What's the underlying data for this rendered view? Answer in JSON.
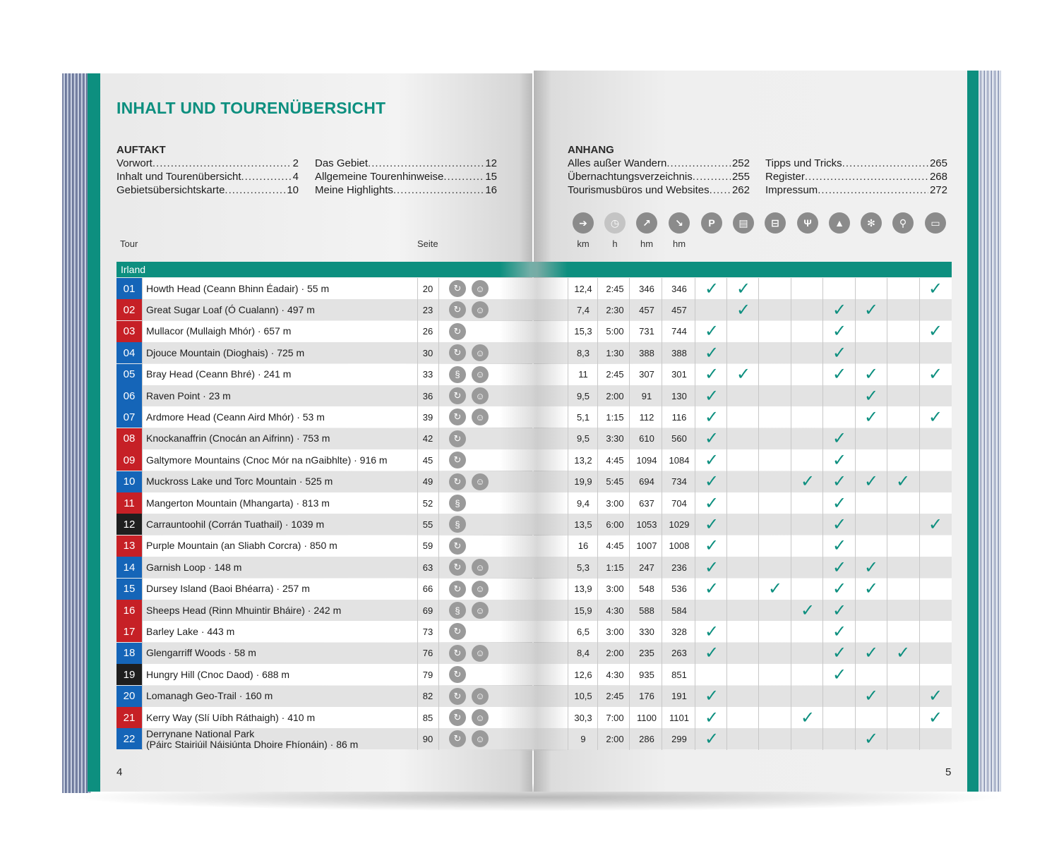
{
  "title": "INHALT UND TOURENÜBERSICHT",
  "auftakt": {
    "heading": "AUFTAKT",
    "col1": [
      {
        "label": "Vorwort",
        "page": "2"
      },
      {
        "label": "Inhalt und Tourenübersicht",
        "page": "4"
      },
      {
        "label": "Gebietsübersichtskarte",
        "page": "10"
      }
    ],
    "col2": [
      {
        "label": "Das Gebiet",
        "page": "12"
      },
      {
        "label": "Allgemeine Tourenhinweise",
        "page": "15"
      },
      {
        "label": "Meine Highlights",
        "page": "16"
      }
    ]
  },
  "anhang": {
    "heading": "ANHANG",
    "col1": [
      {
        "label": "Alles außer Wandern",
        "page": "252"
      },
      {
        "label": "Übernachtungsverzeichnis",
        "page": "255"
      },
      {
        "label": "Tourismusbüros und Websites",
        "page": "262"
      }
    ],
    "col2": [
      {
        "label": "Tipps und Tricks",
        "page": "265"
      },
      {
        "label": "Register",
        "page": "268"
      },
      {
        "label": "Impressum",
        "page": "272"
      }
    ]
  },
  "table": {
    "tour_header": "Tour",
    "seite_header": "Seite",
    "units": [
      "km",
      "h",
      "hm",
      "hm"
    ],
    "header_icons": [
      "distance-sign-icon",
      "clock-icon",
      "ascent-arrow-icon",
      "descent-arrow-icon",
      "parking-icon",
      "bus-icon",
      "cable-car-icon",
      "restaurant-icon",
      "mountain-icon",
      "winter-icon",
      "bicycle-icon",
      "bed-icon"
    ],
    "parking_glyph": "P",
    "region": "Irland",
    "check_glyph": "✓",
    "rows": [
      {
        "no": "01",
        "color": "#1565b8",
        "name": "Howth Head (Ceann Bhinn Éadair) · 55 m",
        "page": "20",
        "type": "round",
        "kids": true,
        "km": "12,4",
        "h": "2:45",
        "up": "346",
        "down": "346",
        "checks": [
          1,
          1,
          0,
          0,
          0,
          0,
          0,
          1
        ]
      },
      {
        "no": "02",
        "color": "#c62026",
        "name": "Great Sugar Loaf (Ó Cualann) · 497 m",
        "page": "23",
        "type": "round",
        "kids": true,
        "km": "7,4",
        "h": "2:30",
        "up": "457",
        "down": "457",
        "checks": [
          0,
          1,
          0,
          0,
          1,
          1,
          0,
          0
        ]
      },
      {
        "no": "03",
        "color": "#c62026",
        "name": "Mullacor (Mullaigh Mhór) · 657 m",
        "page": "26",
        "type": "round",
        "kids": false,
        "km": "15,3",
        "h": "5:00",
        "up": "731",
        "down": "744",
        "checks": [
          1,
          0,
          0,
          0,
          1,
          0,
          0,
          1
        ]
      },
      {
        "no": "04",
        "color": "#1565b8",
        "name": "Djouce Mountain (Dioghais) · 725 m",
        "page": "30",
        "type": "round",
        "kids": true,
        "km": "8,3",
        "h": "1:30",
        "up": "388",
        "down": "388",
        "checks": [
          1,
          0,
          0,
          0,
          1,
          0,
          0,
          0
        ]
      },
      {
        "no": "05",
        "color": "#1565b8",
        "name": "Bray Head (Ceann Bhré) · 241 m",
        "page": "33",
        "type": "line",
        "kids": true,
        "km": "11",
        "h": "2:45",
        "up": "307",
        "down": "301",
        "checks": [
          1,
          1,
          0,
          0,
          1,
          1,
          0,
          1
        ]
      },
      {
        "no": "06",
        "color": "#1565b8",
        "name": "Raven Point · 23 m",
        "page": "36",
        "type": "round",
        "kids": true,
        "km": "9,5",
        "h": "2:00",
        "up": "91",
        "down": "130",
        "checks": [
          1,
          0,
          0,
          0,
          0,
          1,
          0,
          0
        ]
      },
      {
        "no": "07",
        "color": "#1565b8",
        "name": "Ardmore Head (Ceann Aird Mhór) · 53 m",
        "page": "39",
        "type": "round",
        "kids": true,
        "km": "5,1",
        "h": "1:15",
        "up": "112",
        "down": "116",
        "checks": [
          1,
          0,
          0,
          0,
          0,
          1,
          0,
          1
        ]
      },
      {
        "no": "08",
        "color": "#c62026",
        "name": "Knockanaffrin (Cnocán an Aifrinn) · 753 m",
        "page": "42",
        "type": "round",
        "kids": false,
        "km": "9,5",
        "h": "3:30",
        "up": "610",
        "down": "560",
        "checks": [
          1,
          0,
          0,
          0,
          1,
          0,
          0,
          0
        ]
      },
      {
        "no": "09",
        "color": "#c62026",
        "name": "Galtymore Mountains (Cnoc Mór na nGaibhlte) · 916 m",
        "page": "45",
        "type": "round",
        "kids": false,
        "km": "13,2",
        "h": "4:45",
        "up": "1094",
        "down": "1084",
        "checks": [
          1,
          0,
          0,
          0,
          1,
          0,
          0,
          0
        ]
      },
      {
        "no": "10",
        "color": "#1565b8",
        "name": "Muckross Lake und Torc Mountain · 525 m",
        "page": "49",
        "type": "round",
        "kids": true,
        "km": "19,9",
        "h": "5:45",
        "up": "694",
        "down": "734",
        "checks": [
          1,
          0,
          0,
          1,
          1,
          1,
          1,
          0
        ]
      },
      {
        "no": "11",
        "color": "#c62026",
        "name": "Mangerton Mountain (Mhangarta) · 813 m",
        "page": "52",
        "type": "line",
        "kids": false,
        "km": "9,4",
        "h": "3:00",
        "up": "637",
        "down": "704",
        "checks": [
          1,
          0,
          0,
          0,
          1,
          0,
          0,
          0
        ]
      },
      {
        "no": "12",
        "color": "#1e1e1e",
        "name": "Carrauntoohil (Corrán Tuathail) · 1039 m",
        "page": "55",
        "type": "line",
        "kids": false,
        "km": "13,5",
        "h": "6:00",
        "up": "1053",
        "down": "1029",
        "checks": [
          1,
          0,
          0,
          0,
          1,
          0,
          0,
          1
        ]
      },
      {
        "no": "13",
        "color": "#c62026",
        "name": "Purple Mountain (an Sliabh Corcra) · 850 m",
        "page": "59",
        "type": "round",
        "kids": false,
        "km": "16",
        "h": "4:45",
        "up": "1007",
        "down": "1008",
        "checks": [
          1,
          0,
          0,
          0,
          1,
          0,
          0,
          0
        ]
      },
      {
        "no": "14",
        "color": "#1565b8",
        "name": "Garnish Loop · 148 m",
        "page": "63",
        "type": "round",
        "kids": true,
        "km": "5,3",
        "h": "1:15",
        "up": "247",
        "down": "236",
        "checks": [
          1,
          0,
          0,
          0,
          1,
          1,
          0,
          0
        ]
      },
      {
        "no": "15",
        "color": "#1565b8",
        "name": "Dursey Island (Baoi Bhéarra) · 257 m",
        "page": "66",
        "type": "round",
        "kids": true,
        "km": "13,9",
        "h": "3:00",
        "up": "548",
        "down": "536",
        "checks": [
          1,
          0,
          1,
          0,
          1,
          1,
          0,
          0
        ]
      },
      {
        "no": "16",
        "color": "#c62026",
        "name": "Sheeps Head (Rinn Mhuintir Bháire) · 242 m",
        "page": "69",
        "type": "line",
        "kids": true,
        "km": "15,9",
        "h": "4:30",
        "up": "588",
        "down": "584",
        "checks": [
          0,
          0,
          0,
          1,
          1,
          0,
          0,
          0
        ]
      },
      {
        "no": "17",
        "color": "#c62026",
        "name": "Barley Lake · 443 m",
        "page": "73",
        "type": "round",
        "kids": false,
        "km": "6,5",
        "h": "3:00",
        "up": "330",
        "down": "328",
        "checks": [
          1,
          0,
          0,
          0,
          1,
          0,
          0,
          0
        ]
      },
      {
        "no": "18",
        "color": "#1565b8",
        "name": "Glengarriff Woods · 58 m",
        "page": "76",
        "type": "round",
        "kids": true,
        "km": "8,4",
        "h": "2:00",
        "up": "235",
        "down": "263",
        "checks": [
          1,
          0,
          0,
          0,
          1,
          1,
          1,
          0
        ]
      },
      {
        "no": "19",
        "color": "#1e1e1e",
        "name": "Hungry Hill (Cnoc Daod) · 688 m",
        "page": "79",
        "type": "round",
        "kids": false,
        "km": "12,6",
        "h": "4:30",
        "up": "935",
        "down": "851",
        "checks": [
          0,
          0,
          0,
          0,
          1,
          0,
          0,
          0
        ]
      },
      {
        "no": "20",
        "color": "#1565b8",
        "name": "Lomanagh Geo-Trail · 160 m",
        "page": "82",
        "type": "round",
        "kids": true,
        "km": "10,5",
        "h": "2:45",
        "up": "176",
        "down": "191",
        "checks": [
          1,
          0,
          0,
          0,
          0,
          1,
          0,
          1
        ]
      },
      {
        "no": "21",
        "color": "#c62026",
        "name": "Kerry Way (Slí Uíbh Ráthaigh) · 410 m",
        "page": "85",
        "type": "round",
        "kids": true,
        "km": "30,3",
        "h": "7:00",
        "up": "1100",
        "down": "1101",
        "checks": [
          1,
          0,
          0,
          1,
          0,
          0,
          0,
          1
        ]
      },
      {
        "no": "22",
        "color": "#1565b8",
        "name": "Derrynane National Park",
        "name2": "(Páirc Stairiúil Náisiúnta Dhoire Fhíonáin) · 86 m",
        "page": "90",
        "type": "round",
        "kids": true,
        "km": "9",
        "h": "2:00",
        "up": "286",
        "down": "299",
        "checks": [
          1,
          0,
          0,
          0,
          0,
          1,
          0,
          0
        ]
      }
    ]
  },
  "page_left": "4",
  "page_right": "5",
  "colors": {
    "teal": "#0d8f7f",
    "blue": "#1565b8",
    "red": "#c62026",
    "black": "#1e1e1e"
  }
}
